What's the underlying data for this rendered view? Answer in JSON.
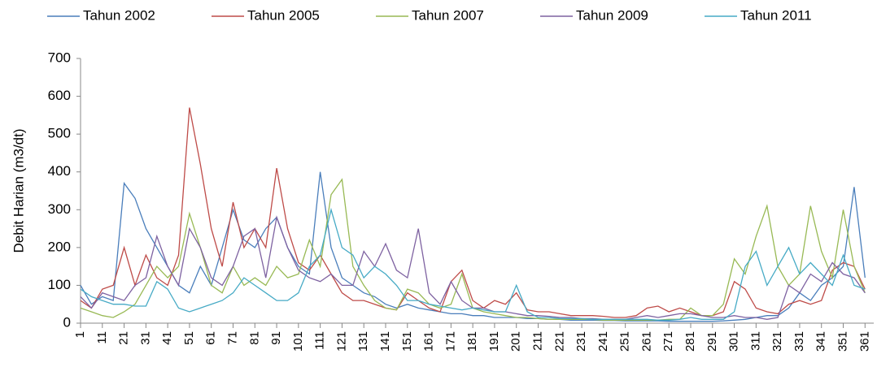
{
  "chart_data": {
    "type": "line",
    "y_label": "Debit Harian (m3/dt)",
    "x": [
      1,
      6,
      11,
      16,
      21,
      26,
      31,
      36,
      41,
      46,
      51,
      56,
      61,
      66,
      71,
      76,
      81,
      86,
      91,
      96,
      101,
      106,
      111,
      116,
      121,
      126,
      131,
      136,
      141,
      146,
      151,
      156,
      161,
      166,
      171,
      176,
      181,
      186,
      191,
      196,
      201,
      206,
      211,
      216,
      221,
      226,
      231,
      236,
      241,
      246,
      251,
      256,
      261,
      266,
      271,
      276,
      281,
      286,
      291,
      296,
      301,
      306,
      311,
      316,
      321,
      326,
      331,
      336,
      341,
      346,
      351,
      356,
      361
    ],
    "xlim": [
      1,
      365
    ],
    "xticks": [
      1,
      11,
      21,
      31,
      41,
      51,
      61,
      71,
      81,
      91,
      101,
      111,
      121,
      131,
      141,
      151,
      161,
      171,
      181,
      191,
      201,
      211,
      221,
      231,
      241,
      251,
      261,
      271,
      281,
      291,
      301,
      311,
      321,
      331,
      341,
      351,
      361
    ],
    "ylim": [
      0,
      700
    ],
    "yticks": [
      0,
      100,
      200,
      300,
      400,
      500,
      600,
      700
    ],
    "legend": "top",
    "series": [
      {
        "name": "Tahun 2002",
        "color": "#4a7ebb",
        "values": [
          100,
          50,
          70,
          60,
          370,
          330,
          250,
          200,
          150,
          100,
          80,
          150,
          100,
          200,
          300,
          220,
          200,
          250,
          280,
          200,
          150,
          130,
          400,
          200,
          120,
          100,
          80,
          70,
          50,
          40,
          50,
          40,
          35,
          30,
          25,
          25,
          20,
          20,
          15,
          15,
          15,
          12,
          12,
          10,
          10,
          8,
          8,
          8,
          7,
          7,
          6,
          6,
          6,
          6,
          5,
          5,
          5,
          5,
          5,
          6,
          8,
          10,
          15,
          20,
          20,
          40,
          80,
          60,
          100,
          120,
          150,
          360,
          120
        ]
      },
      {
        "name": "Tahun 2005",
        "color": "#be4b48",
        "values": [
          60,
          40,
          90,
          100,
          200,
          100,
          180,
          120,
          100,
          180,
          570,
          420,
          250,
          150,
          320,
          200,
          250,
          200,
          410,
          250,
          160,
          140,
          180,
          130,
          80,
          60,
          60,
          50,
          40,
          35,
          80,
          60,
          40,
          30,
          110,
          140,
          60,
          40,
          60,
          50,
          80,
          35,
          30,
          30,
          25,
          20,
          20,
          20,
          18,
          15,
          15,
          20,
          40,
          45,
          30,
          40,
          30,
          20,
          20,
          30,
          110,
          90,
          40,
          30,
          25,
          50,
          60,
          50,
          60,
          140,
          160,
          150,
          90
        ]
      },
      {
        "name": "Tahun 2007",
        "color": "#98b954",
        "values": [
          40,
          30,
          20,
          15,
          30,
          50,
          100,
          150,
          120,
          150,
          290,
          200,
          100,
          80,
          150,
          100,
          120,
          100,
          150,
          120,
          130,
          220,
          150,
          340,
          380,
          150,
          100,
          60,
          40,
          35,
          90,
          80,
          50,
          40,
          50,
          130,
          40,
          30,
          25,
          20,
          15,
          15,
          12,
          10,
          10,
          10,
          10,
          10,
          8,
          8,
          8,
          8,
          8,
          8,
          10,
          10,
          40,
          20,
          20,
          50,
          170,
          130,
          230,
          310,
          150,
          100,
          130,
          310,
          190,
          120,
          300,
          150,
          80
        ]
      },
      {
        "name": "Tahun 2009",
        "color": "#7e62a1",
        "values": [
          70,
          40,
          80,
          70,
          60,
          100,
          120,
          230,
          150,
          100,
          250,
          200,
          120,
          100,
          150,
          230,
          250,
          120,
          280,
          200,
          140,
          120,
          110,
          130,
          100,
          100,
          190,
          150,
          210,
          140,
          120,
          250,
          80,
          50,
          110,
          60,
          40,
          40,
          30,
          30,
          25,
          20,
          20,
          18,
          15,
          15,
          12,
          12,
          10,
          10,
          10,
          15,
          20,
          15,
          20,
          25,
          25,
          20,
          15,
          15,
          20,
          15,
          15,
          10,
          15,
          100,
          80,
          130,
          110,
          160,
          130,
          120,
          80
        ]
      },
      {
        "name": "Tahun 2011",
        "color": "#46aac5",
        "values": [
          90,
          70,
          60,
          50,
          50,
          45,
          45,
          110,
          90,
          40,
          30,
          40,
          50,
          60,
          80,
          120,
          100,
          80,
          60,
          60,
          80,
          150,
          180,
          300,
          200,
          180,
          120,
          150,
          130,
          100,
          60,
          60,
          50,
          45,
          40,
          35,
          40,
          35,
          30,
          30,
          100,
          30,
          15,
          15,
          12,
          12,
          12,
          10,
          10,
          10,
          10,
          10,
          10,
          8,
          8,
          10,
          15,
          10,
          10,
          10,
          30,
          150,
          190,
          100,
          150,
          200,
          130,
          160,
          130,
          100,
          180,
          100,
          90
        ]
      }
    ]
  }
}
